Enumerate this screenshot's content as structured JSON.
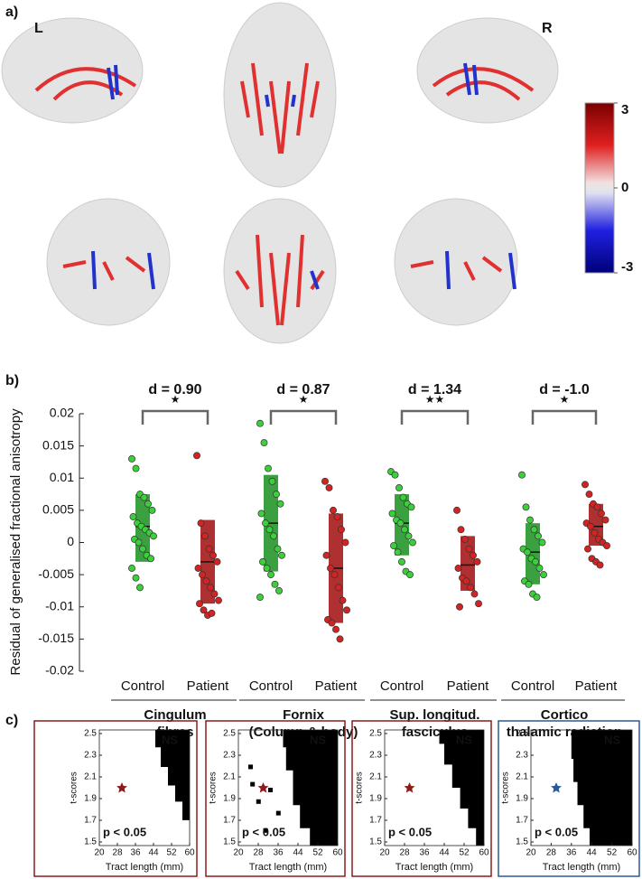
{
  "panel_labels": [
    "a)",
    "b)",
    "c)"
  ],
  "hemisphere_labels": [
    "L",
    "R"
  ],
  "colorbar": {
    "lim": [
      -3,
      3
    ],
    "ticks": [
      3,
      0,
      -3
    ]
  },
  "chart_data": {
    "type": "strip",
    "y_label": "Residual of generalised fractional anisotropy",
    "ylim": [
      -0.02,
      0.02
    ],
    "yticks": [
      0.02,
      0.015,
      0.01,
      0.005,
      0,
      -0.005,
      -0.01,
      -0.015,
      -0.02
    ],
    "groups": [
      {
        "name": "Control",
        "color": "#3ccf3c",
        "box_color": "#26962a",
        "values": [
          0.013,
          0.0115,
          0.0075,
          0.007,
          0.006,
          0.005,
          0.004,
          0.003,
          0.0025,
          0.002,
          0.0015,
          0.001,
          0.0005,
          0,
          -0.001,
          -0.002,
          -0.0025,
          -0.004,
          -0.0055,
          -0.007
        ],
        "box": [
          -0.003,
          0.0075
        ],
        "median": 0.0025
      },
      {
        "name": "Patient",
        "color": "#d42323",
        "box_color": "#a51a1a",
        "values": [
          0.0135,
          0.003,
          0.001,
          -0.001,
          -0.002,
          -0.003,
          -0.004,
          -0.005,
          -0.006,
          -0.007,
          -0.008,
          -0.009,
          -0.0095,
          -0.0105,
          -0.0113,
          -0.011
        ],
        "box": [
          -0.0095,
          0.0035
        ],
        "median": -0.003
      },
      {
        "name": "Control",
        "color": "#3ccf3c",
        "box_color": "#26962a",
        "values": [
          0.0185,
          0.0155,
          0.0115,
          0.0095,
          0.0075,
          0.006,
          0.0045,
          0.003,
          0.002,
          0.001,
          -0.001,
          -0.002,
          -0.003,
          -0.004,
          -0.005,
          -0.0065,
          -0.0075,
          -0.0085
        ],
        "box": [
          -0.0045,
          0.0105
        ],
        "median": 0.003
      },
      {
        "name": "Patient",
        "color": "#d42323",
        "box_color": "#a51a1a",
        "values": [
          0.0095,
          0.0085,
          0.005,
          0.004,
          0.002,
          0,
          -0.002,
          -0.004,
          -0.005,
          -0.007,
          -0.009,
          -0.0105,
          -0.012,
          -0.0125,
          -0.0135,
          -0.015
        ],
        "box": [
          -0.0125,
          0.0045
        ],
        "median": -0.004
      },
      {
        "name": "Control",
        "color": "#3ccf3c",
        "box_color": "#26962a",
        "values": [
          0.011,
          0.0105,
          0.0085,
          0.007,
          0.006,
          0.0055,
          0.0045,
          0.0035,
          0.003,
          0.002,
          0.001,
          0,
          -0.0005,
          -0.0015,
          -0.003,
          -0.0045,
          -0.005
        ],
        "box": [
          -0.002,
          0.0075
        ],
        "median": 0.003
      },
      {
        "name": "Patient",
        "color": "#d42323",
        "box_color": "#a51a1a",
        "values": [
          0.005,
          0.002,
          0.0005,
          -0.001,
          -0.002,
          -0.003,
          -0.004,
          -0.0055,
          -0.006,
          -0.007,
          -0.008,
          -0.0095,
          -0.01
        ],
        "box": [
          -0.0075,
          0.001
        ],
        "median": -0.0035
      },
      {
        "name": "Control",
        "color": "#3ccf3c",
        "box_color": "#26962a",
        "values": [
          0.0105,
          0.0055,
          0.0035,
          0.002,
          0.001,
          0,
          -0.001,
          -0.0015,
          -0.0025,
          -0.003,
          -0.004,
          -0.005,
          -0.006,
          -0.0065,
          -0.008,
          -0.0085
        ],
        "box": [
          -0.0065,
          0.003
        ],
        "median": -0.0015
      },
      {
        "name": "Patient",
        "color": "#d42323",
        "box_color": "#a51a1a",
        "values": [
          0.009,
          0.0075,
          0.006,
          0.0055,
          0.0045,
          0.0035,
          0.003,
          0.0025,
          0.0015,
          0.0005,
          0,
          -0.0005,
          -0.001,
          -0.0025,
          -0.003,
          -0.0035
        ],
        "box": [
          -0.0005,
          0.006
        ],
        "median": 0.0025
      }
    ],
    "tracts": [
      {
        "name": [
          "Cingulum",
          "fibres"
        ],
        "color": "#8b1c1c",
        "effect": "d = 0.90",
        "stars": "★"
      },
      {
        "name": [
          "Fornix",
          "(Column & body)"
        ],
        "color": "#8b1c1c",
        "effect": "d = 0.87",
        "stars": "★"
      },
      {
        "name": [
          "Sup. longitud.",
          "fasciculus"
        ],
        "color": "#8b1c1c",
        "effect": "d = 1.34",
        "stars": "★★"
      },
      {
        "name": [
          "Cortico",
          "thalamic radiation"
        ],
        "color": "#2a5a96",
        "effect": "d = -1.0",
        "stars": "★"
      }
    ]
  },
  "threshold_panels": {
    "y_label": "t-scores",
    "x_label": "Tract length (mm)",
    "ylim": [
      1.5,
      2.5
    ],
    "yticks": [
      2.5,
      2.3,
      2.1,
      1.9,
      1.7,
      1.5
    ],
    "xlim": [
      20,
      60
    ],
    "xticks": [
      20,
      28,
      36,
      44,
      52,
      60
    ],
    "panels": [
      {
        "color": "#8b1c1c",
        "ns": "NS",
        "sig": "p < 0.05"
      },
      {
        "color": "#8b1c1c",
        "ns": "NS",
        "sig": "p < 0.05"
      },
      {
        "color": "#8b1c1c",
        "ns": "NS",
        "sig": "p < 0.05"
      },
      {
        "color": "#2a5a96",
        "ns": "NS",
        "sig": "p < 0.05"
      }
    ]
  }
}
